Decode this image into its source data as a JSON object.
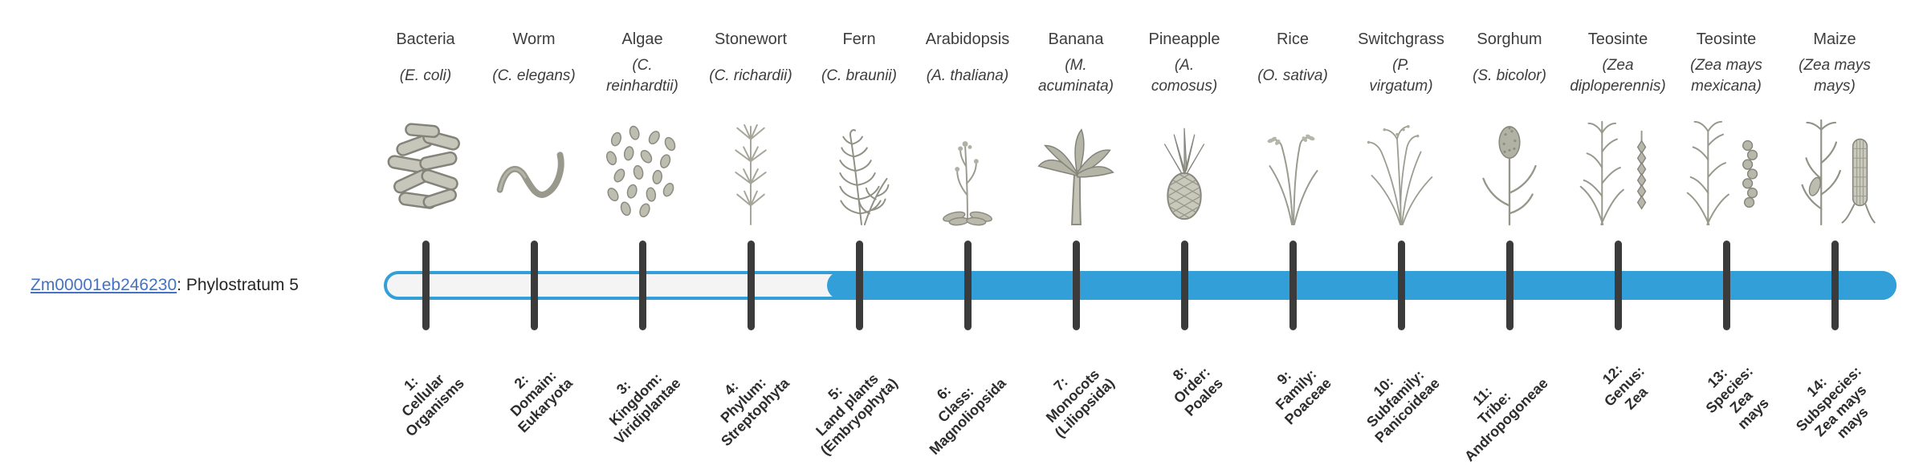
{
  "gene": {
    "id": "Zm00001eb246230",
    "suffix": ": Phylostratum 5",
    "link_color": "#4472c4"
  },
  "timeline": {
    "fill_color": "#339fd8",
    "empty_color": "#f4f4f4",
    "tick_color": "#3b3b3b",
    "filled_from_index": 4
  },
  "species": [
    {
      "common": "Bacteria",
      "sci_lines": [
        "(E. coli)"
      ],
      "icon": "bacteria",
      "stratum_lines": [
        "1:",
        "Cellular",
        "Organisms"
      ]
    },
    {
      "common": "Worm",
      "sci_lines": [
        "(C. elegans)"
      ],
      "icon": "worm",
      "stratum_lines": [
        "2:",
        "Domain:",
        "Eukaryota"
      ]
    },
    {
      "common": "Algae",
      "sci_lines": [
        "(C.",
        "reinhardtii)"
      ],
      "icon": "algae",
      "stratum_lines": [
        "3:",
        "Kingdom:",
        "Viridiplantae"
      ]
    },
    {
      "common": "Stonewort",
      "sci_lines": [
        "(C. richardii)"
      ],
      "icon": "stonewort",
      "stratum_lines": [
        "4:",
        "Phylum:",
        "Streptophyta"
      ]
    },
    {
      "common": "Fern",
      "sci_lines": [
        "(C. braunii)"
      ],
      "icon": "fern",
      "stratum_lines": [
        "5:",
        "Land plants",
        "(Embryophyta)"
      ]
    },
    {
      "common": "Arabidopsis",
      "sci_lines": [
        "(A. thaliana)"
      ],
      "icon": "arabidopsis",
      "stratum_lines": [
        "6:",
        "Class:",
        "Magnoliopsida"
      ]
    },
    {
      "common": "Banana",
      "sci_lines": [
        "(M.",
        "acuminata)"
      ],
      "icon": "banana",
      "stratum_lines": [
        "7:",
        "Monocots",
        "(Liliopsida)"
      ]
    },
    {
      "common": "Pineapple",
      "sci_lines": [
        "(A.",
        "comosus)"
      ],
      "icon": "pineapple",
      "stratum_lines": [
        "8:",
        "Order:",
        "Poales"
      ]
    },
    {
      "common": "Rice",
      "sci_lines": [
        "(O. sativa)"
      ],
      "icon": "rice",
      "stratum_lines": [
        "9:",
        "Family:",
        "Poaceae"
      ]
    },
    {
      "common": "Switchgrass",
      "sci_lines": [
        "(P.",
        "virgatum)"
      ],
      "icon": "switchgrass",
      "stratum_lines": [
        "10:",
        "Subfamily:",
        "Panicoideae"
      ]
    },
    {
      "common": "Sorghum",
      "sci_lines": [
        "(S. bicolor)"
      ],
      "icon": "sorghum",
      "stratum_lines": [
        "11:",
        "Tribe:",
        "Andropogoneae"
      ]
    },
    {
      "common": "Teosinte",
      "sci_lines": [
        "(Zea",
        "diploperennis)"
      ],
      "icon": "teosinte",
      "stratum_lines": [
        "12:",
        "Genus:",
        "Zea"
      ]
    },
    {
      "common": "Teosinte",
      "sci_lines": [
        "(Zea mays",
        "mexicana)"
      ],
      "icon": "teosinte2",
      "stratum_lines": [
        "13:",
        "Species:",
        "Zea",
        "mays"
      ]
    },
    {
      "common": "Maize",
      "sci_lines": [
        "(Zea mays",
        "mays)"
      ],
      "icon": "maize",
      "stratum_lines": [
        "14:",
        "Subspecies:",
        "Zea mays",
        "mays"
      ]
    }
  ]
}
